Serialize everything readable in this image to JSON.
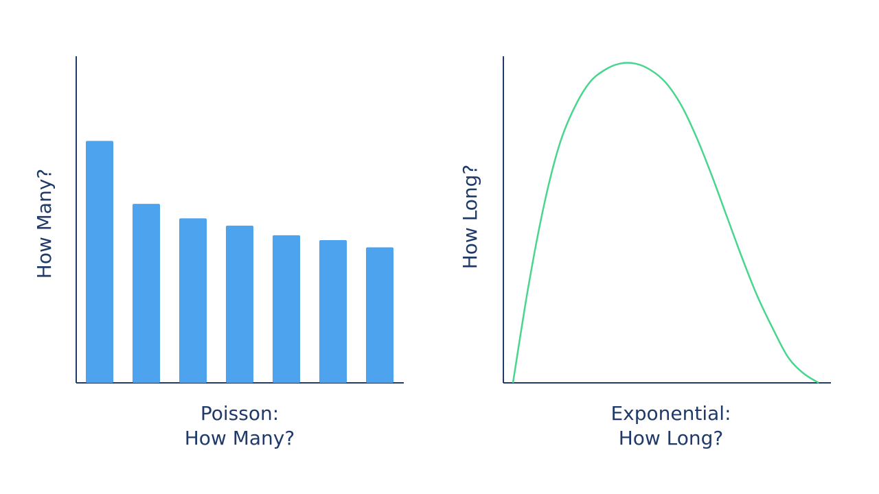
{
  "charts": {
    "left": {
      "ylabel": "How Many?",
      "caption_line1": "Poisson:",
      "caption_line2": "How Many?"
    },
    "right": {
      "ylabel": "How Long?",
      "caption_line1": "Exponential:",
      "caption_line2": "How Long?"
    }
  },
  "colors": {
    "axis": "#1f3a68",
    "bar": "#4da3ee",
    "curve": "#47d68c",
    "text": "#1f3a68"
  },
  "chart_data": [
    {
      "type": "bar",
      "categories": [
        "",
        "",
        "",
        "",
        "",
        "",
        ""
      ],
      "values": [
        100,
        74,
        68,
        65,
        61,
        59,
        56
      ],
      "ylim": [
        0,
        135
      ],
      "title": "",
      "xlabel": "Poisson:\nHow Many?",
      "ylabel": "How Many?",
      "grid": false
    },
    {
      "type": "line",
      "x": [
        0,
        5,
        10,
        15,
        20,
        25,
        30,
        35,
        40,
        45,
        50,
        55,
        60,
        65,
        70,
        75,
        80,
        85,
        90,
        95,
        100
      ],
      "y": [
        0,
        30,
        55,
        74,
        86,
        94,
        98,
        100,
        100,
        98,
        94,
        87,
        77,
        65,
        52,
        39,
        27,
        17,
        8,
        3,
        0
      ],
      "xlim": [
        0,
        104
      ],
      "ylim": [
        0,
        101
      ],
      "title": "",
      "xlabel": "Exponential:\nHow Long?",
      "ylabel": "How Long?",
      "grid": false
    }
  ]
}
